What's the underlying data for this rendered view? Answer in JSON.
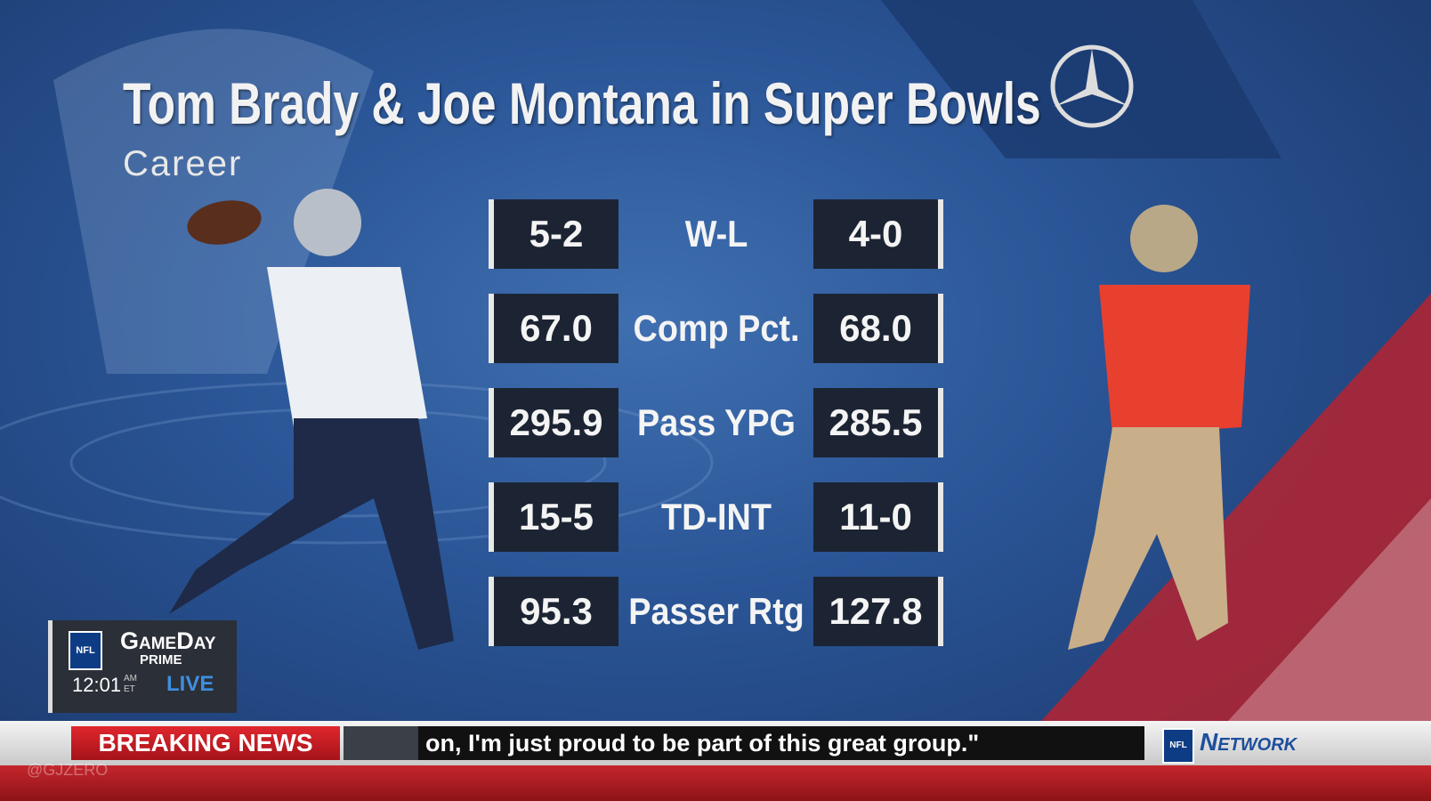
{
  "header": {
    "title": "Tom Brady & Joe Montana in Super Bowls",
    "subtitle": "Career"
  },
  "stats": {
    "rows": [
      {
        "left": "5-2",
        "label": "W-L",
        "right": "4-0"
      },
      {
        "left": "67.0",
        "label": "Comp Pct.",
        "right": "68.0"
      },
      {
        "left": "295.9",
        "label": "Pass YPG",
        "right": "285.5"
      },
      {
        "left": "15-5",
        "label": "TD-INT",
        "right": "11-0"
      },
      {
        "left": "95.3",
        "label": "Passer Rtg",
        "right": "127.8"
      }
    ]
  },
  "bug": {
    "show": "GameDay",
    "sub": "PRIME",
    "time": "12:01",
    "am": "AM",
    "et": "ET",
    "live": "LIVE",
    "logo": "NFL"
  },
  "ticker": {
    "tag": "BREAKING NEWS",
    "text": "on, I'm just proud to be part of this great group.\"",
    "network": "Network",
    "logo": "NFL"
  },
  "watermark": "@GJZERO"
}
